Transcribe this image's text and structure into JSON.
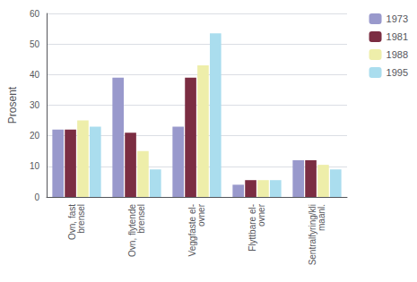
{
  "chart_data": {
    "type": "bar",
    "categories": [
      "Ovn, fast\nbrensel",
      "Ovn, flytende\nbrensel",
      "Veggfaste el-\novner",
      "Flyttbare el-\novner",
      "Sentralfyring/kli\nmaanl."
    ],
    "series": [
      {
        "name": "1973",
        "color": "#9999CC",
        "values": [
          22,
          39,
          23,
          4,
          12
        ]
      },
      {
        "name": "1981",
        "color": "#7B2D42",
        "values": [
          22,
          21,
          39,
          5.5,
          12
        ]
      },
      {
        "name": "1988",
        "color": "#EEEEAA",
        "values": [
          25,
          15,
          43,
          5.5,
          10.5
        ]
      },
      {
        "name": "1995",
        "color": "#AADDEE",
        "values": [
          23,
          9,
          53.5,
          5.5,
          9
        ]
      }
    ],
    "ylabel": "Prosent",
    "ylim": [
      0,
      60
    ],
    "yticks": [
      0,
      10,
      20,
      30,
      40,
      50,
      60
    ],
    "grid": true,
    "legend": "upper right"
  }
}
